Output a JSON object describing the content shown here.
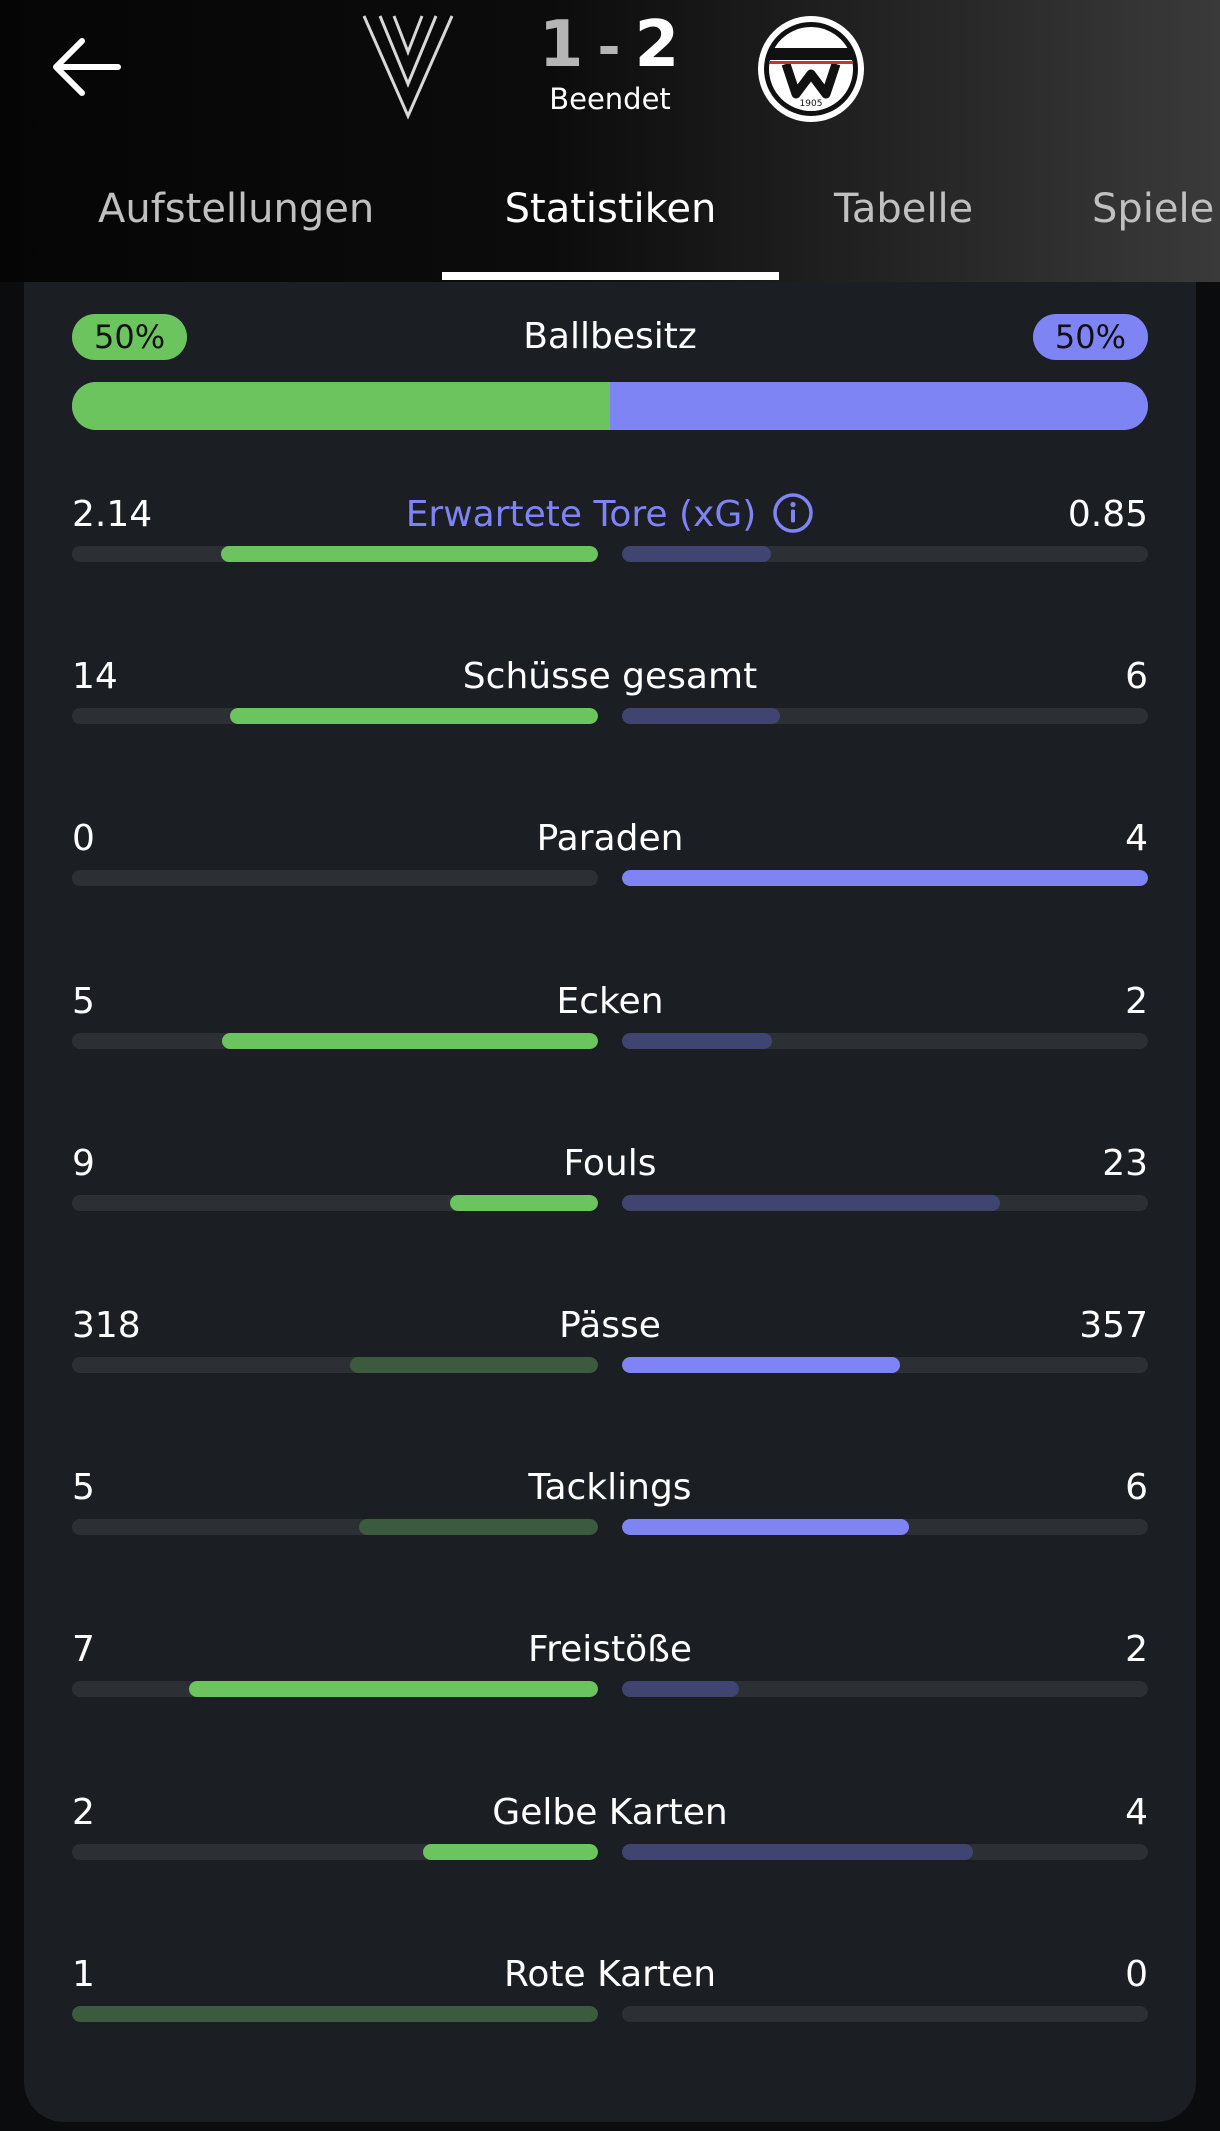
{
  "header": {
    "score_home": "1",
    "score_sep": "-",
    "score_away": "2",
    "status": "Beendet",
    "away_logo_year": "1905"
  },
  "tabs": [
    {
      "label": "Aufstellungen",
      "active": false
    },
    {
      "label": "Statistiken",
      "active": true
    },
    {
      "label": "Tabelle",
      "active": false
    },
    {
      "label": "Spiele",
      "active": false
    }
  ],
  "colors": {
    "home": "#6cc45e",
    "home_dim": "#3b5a3e",
    "away": "#7f84f5",
    "away_dim": "#3f4470",
    "track": "#2c3034",
    "card": "#1b1e22"
  },
  "possession": {
    "label": "Ballbesitz",
    "home_text": "50%",
    "away_text": "50%",
    "home_pct": 50
  },
  "stats": [
    {
      "label": "Erwartete Tore (xG)",
      "home": "2.14",
      "away": "0.85",
      "home_fraction": 0.716,
      "away_fraction": 0.284,
      "home_leads": true,
      "info_icon": true
    },
    {
      "label": "Schüsse gesamt",
      "home": "14",
      "away": "6",
      "home_fraction": 0.7,
      "away_fraction": 0.3,
      "home_leads": true
    },
    {
      "label": "Paraden",
      "home": "0",
      "away": "4",
      "home_fraction": 0.0,
      "away_fraction": 1.0,
      "home_leads": false
    },
    {
      "label": "Ecken",
      "home": "5",
      "away": "2",
      "home_fraction": 0.714,
      "away_fraction": 0.286,
      "home_leads": true
    },
    {
      "label": "Fouls",
      "home": "9",
      "away": "23",
      "home_fraction": 0.281,
      "away_fraction": 0.719,
      "home_leads": true
    },
    {
      "label": "Pässe",
      "home": "318",
      "away": "357",
      "home_fraction": 0.471,
      "away_fraction": 0.529,
      "home_leads": false
    },
    {
      "label": "Tacklings",
      "home": "5",
      "away": "6",
      "home_fraction": 0.455,
      "away_fraction": 0.545,
      "home_leads": false
    },
    {
      "label": "Freistöße",
      "home": "7",
      "away": "2",
      "home_fraction": 0.778,
      "away_fraction": 0.222,
      "home_leads": true
    },
    {
      "label": "Gelbe Karten",
      "home": "2",
      "away": "4",
      "home_fraction": 0.333,
      "away_fraction": 0.667,
      "home_leads": true
    },
    {
      "label": "Rote Karten",
      "home": "1",
      "away": "0",
      "home_fraction": 1.0,
      "away_fraction": 0.0,
      "home_leads": false
    }
  ]
}
